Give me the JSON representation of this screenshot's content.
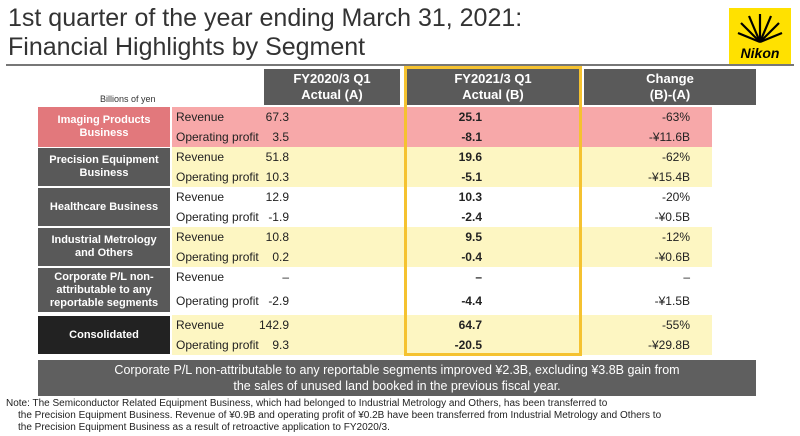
{
  "title": {
    "line1": "1st quarter of the year ending March 31, 2021:",
    "line2": "Financial Highlights by Segment"
  },
  "logo": {
    "text": "Nikon",
    "color": "#ffe100"
  },
  "units": "Billions of yen",
  "columns": {
    "a": {
      "line1": "FY2020/3 Q1",
      "line2": "Actual (A)"
    },
    "b": {
      "line1": "FY2021/3 Q1",
      "line2": "Actual (B)"
    },
    "c": {
      "line1": "Change",
      "line2": "(B)-(A)"
    }
  },
  "segments": [
    {
      "name": "Imaging Products Business",
      "fill": "#e2787c",
      "row_bg": "#f7a8a9",
      "rows": [
        {
          "label": "Revenue",
          "a": "67.3",
          "b": "25.1",
          "c": "-63%"
        },
        {
          "label": "Operating profit",
          "a": "3.5",
          "b": "-8.1",
          "c": "-¥11.6B"
        }
      ]
    },
    {
      "name": "Precision Equipment Business",
      "fill": "#595959",
      "row_bg": "#fdf6c2",
      "rows": [
        {
          "label": "Revenue",
          "a": "51.8",
          "b": "19.6",
          "c": "-62%"
        },
        {
          "label": "Operating profit",
          "a": "10.3",
          "b": "-5.1",
          "c": "-¥15.4B"
        }
      ]
    },
    {
      "name": "Healthcare Business",
      "fill": "#595959",
      "row_bg": "#ffffff",
      "rows": [
        {
          "label": "Revenue",
          "a": "12.9",
          "b": "10.3",
          "c": "-20%"
        },
        {
          "label": "Operating profit",
          "a": "-1.9",
          "b": "-2.4",
          "c": "-¥0.5B"
        }
      ]
    },
    {
      "name": "Industrial Metrology and Others",
      "fill": "#595959",
      "row_bg": "#fdf6c2",
      "rows": [
        {
          "label": "Revenue",
          "a": "10.8",
          "b": "9.5",
          "c": "-12%"
        },
        {
          "label": "Operating profit",
          "a": "0.2",
          "b": "-0.4",
          "c": "-¥0.6B"
        }
      ]
    },
    {
      "name": "Corporate P/L non-attributable to any reportable segments",
      "fill": "#595959",
      "row_bg": "#ffffff",
      "rows": [
        {
          "label": "Revenue",
          "a": "–",
          "b": "–",
          "c": "–"
        },
        {
          "label": "Operating profit",
          "a": "-2.9",
          "b": "-4.4",
          "c": "-¥1.5B"
        }
      ]
    },
    {
      "name": "Consolidated",
      "fill": "#222222",
      "row_bg": "#fdf6c2",
      "rows": [
        {
          "label": "Revenue",
          "a": "142.9",
          "b": "64.7",
          "c": "-55%"
        },
        {
          "label": "Operating profit",
          "a": "9.3",
          "b": "-20.5",
          "c": "-¥29.8B"
        }
      ]
    }
  ],
  "summary": {
    "line1": "Corporate P/L non-attributable to any reportable segments improved ¥2.3B, excluding ¥3.8B gain from",
    "line2": "the sales of unused land booked in the previous fiscal year."
  },
  "note": {
    "line1": "Note: The Semiconductor Related Equipment Business, which had belonged to Industrial Metrology and Others, has been transferred to",
    "line2": "the Precision Equipment Business. Revenue of ¥0.9B and operating profit of ¥0.2B have been transferred from Industrial Metrology and Others to",
    "line3": "the Precision Equipment Business as a result of retroactive application to FY2020/3."
  },
  "colors": {
    "highlight_border": "#f5c230",
    "header_bg": "#5a5a5a"
  }
}
